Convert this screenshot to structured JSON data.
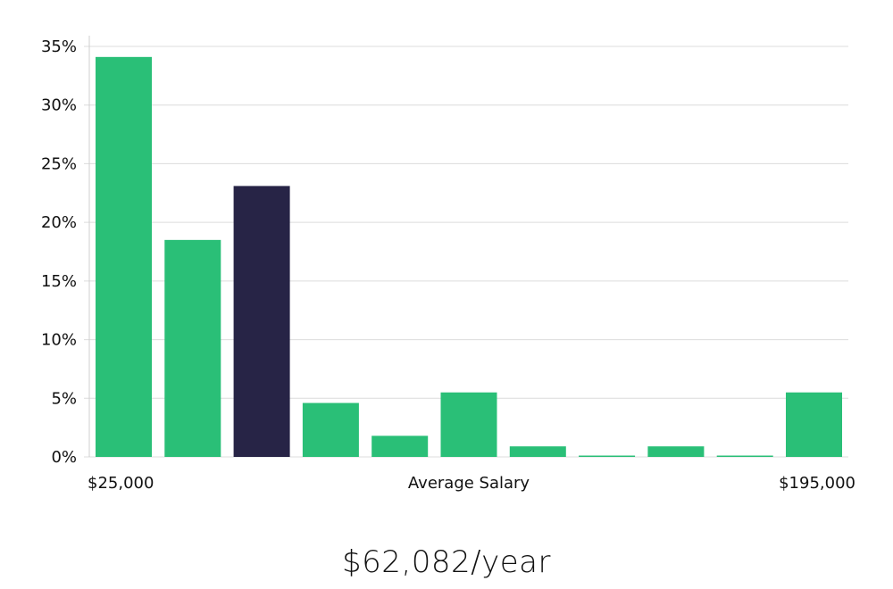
{
  "chart_data": {
    "type": "bar",
    "values": [
      34.1,
      18.5,
      23.1,
      4.6,
      1.8,
      5.5,
      0.9,
      0.05,
      0.9,
      0.05,
      5.5
    ],
    "highlight_index": 2,
    "yticks": [
      "0%",
      "5%",
      "10%",
      "15%",
      "20%",
      "25%",
      "30%",
      "35%"
    ],
    "ylim": [
      0,
      35
    ],
    "x_start_label": "$25,000",
    "xlabel": "Average Salary",
    "x_end_label": "$195,000",
    "grid": true,
    "colors": {
      "bar": "#2abf77",
      "highlight": "#272446"
    }
  },
  "salary_readout": "$62,082/year"
}
